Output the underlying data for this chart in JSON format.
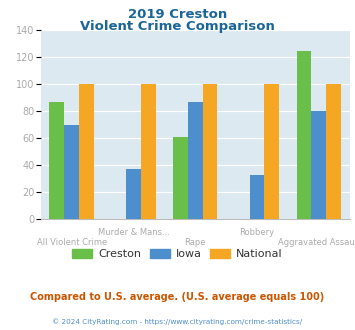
{
  "title_line1": "2019 Creston",
  "title_line2": "Violent Crime Comparison",
  "categories": [
    "All Violent Crime",
    "Murder & Mans...",
    "Rape",
    "Robbery",
    "Aggravated Assault"
  ],
  "category_labels_row1": [
    "",
    "Murder & Mans...",
    "",
    "Robbery",
    ""
  ],
  "category_labels_row2": [
    "All Violent Crime",
    "",
    "Rape",
    "",
    "Aggravated Assault"
  ],
  "series": {
    "Creston": [
      87,
      0,
      61,
      0,
      124
    ],
    "Iowa": [
      70,
      37,
      87,
      33,
      80
    ],
    "National": [
      100,
      100,
      100,
      100,
      100
    ]
  },
  "colors": {
    "Creston": "#6abf4b",
    "Iowa": "#4d8fcc",
    "National": "#f5a623"
  },
  "ylim": [
    0,
    140
  ],
  "yticks": [
    0,
    20,
    40,
    60,
    80,
    100,
    120,
    140
  ],
  "plot_bg": "#dce9f0",
  "title_color": "#1a6699",
  "axis_label_color": "#aaaaaa",
  "legend_label_color": "#333333",
  "footer_text": "Compared to U.S. average. (U.S. average equals 100)",
  "copyright_text": "© 2024 CityRating.com - https://www.cityrating.com/crime-statistics/",
  "footer_color": "#cc5500",
  "copyright_color": "#4d8fcc"
}
